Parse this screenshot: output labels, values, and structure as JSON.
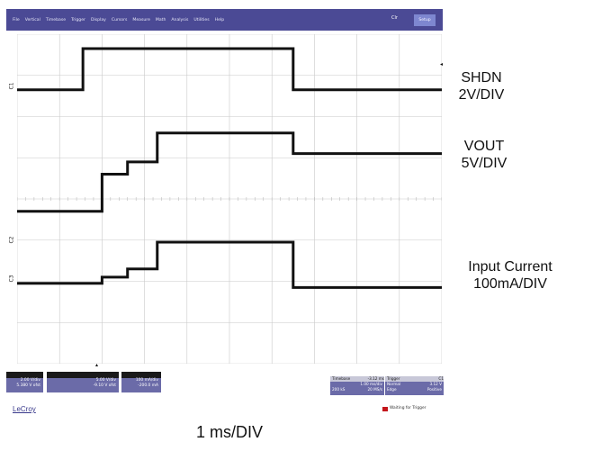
{
  "menu": {
    "items": [
      "File",
      "Vertical",
      "Timebase",
      "Trigger",
      "Display",
      "Cursors",
      "Measure",
      "Math",
      "Analysis",
      "Utilities",
      "Help"
    ],
    "close_label": "Clr",
    "setup_label": "Setup"
  },
  "channels": {
    "c1": {
      "marker": "C1",
      "scale": "2.00 V/div",
      "offset": "5.380 V ofst"
    },
    "c2": {
      "marker": "C2",
      "scale": "5.00 V/div",
      "offset": "-9.10 V ofst"
    },
    "c3": {
      "marker": "C3",
      "scale": "100 mA/div",
      "offset": "-200.0 mA"
    }
  },
  "timebase": {
    "header": "Timebase",
    "header_value": "-3.12 ms",
    "row1": [
      "",
      "1.00 ms/div"
    ],
    "row2": [
      "200 kS",
      "20 MS/s"
    ]
  },
  "trigger": {
    "header": "Trigger",
    "header_value": "C1",
    "row1": [
      "Normal",
      "3.12 V"
    ],
    "row2": [
      "Edge",
      "Positive"
    ]
  },
  "brand": "LeCroy",
  "status": {
    "text": "Waiting for Trigger",
    "color": "#c4161c"
  },
  "labels": {
    "shdn": [
      "SHDN",
      "2V/DIV"
    ],
    "vout": [
      "VOUT",
      "5V/DIV"
    ],
    "iin": [
      "Input Current",
      "100mA/DIV"
    ],
    "time": "1 ms/DIV"
  },
  "traces": {
    "shdn": {
      "low": 0,
      "high": 2,
      "edges_div": [
        1.55,
        6.5
      ]
    },
    "vout": {
      "levels": [
        0,
        0.9,
        1.2,
        1.9,
        1.4
      ],
      "edges_div": [
        2.0,
        2.6,
        3.3,
        6.5
      ]
    },
    "iin": {
      "levels": [
        0,
        0.15,
        0.35,
        1.0,
        -0.1
      ],
      "edges_div": [
        2.0,
        2.6,
        3.3,
        6.5
      ]
    }
  },
  "colors": {
    "menubar": "#4b4a95",
    "info_box": "#6b6ba8",
    "trace": "#111111",
    "grid": "#c9c9c9"
  }
}
